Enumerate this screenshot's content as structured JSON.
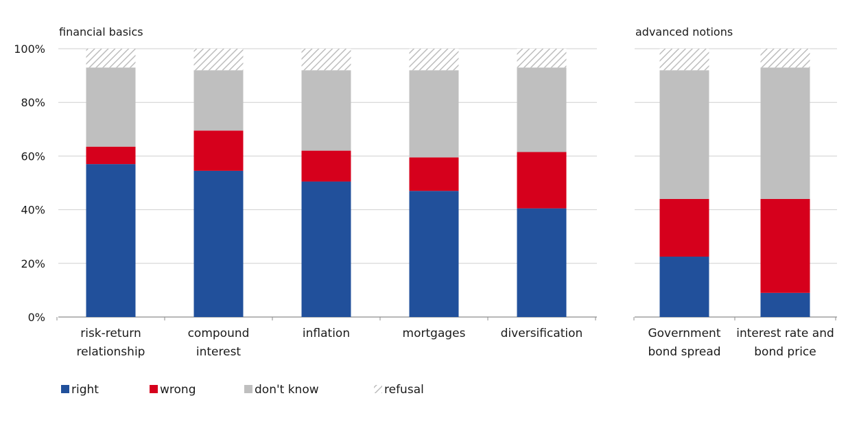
{
  "chart_data": {
    "type": "bar",
    "stacked": true,
    "y_tick_labels": [
      "0%",
      "20%",
      "40%",
      "60%",
      "80%",
      "100%"
    ],
    "ylim": [
      0,
      100
    ],
    "grid": true,
    "legend_position": "bottom-left",
    "series": [
      {
        "name": "right",
        "color": "#21509B"
      },
      {
        "name": "wrong",
        "color": "#D6001C"
      },
      {
        "name": "don't know",
        "color": "#BFBFBF"
      },
      {
        "name": "refusal",
        "color": "#E6E6E6",
        "pattern": "hatched"
      }
    ],
    "panels": [
      {
        "title": "financial basics",
        "categories": [
          [
            "risk-return",
            "relationship"
          ],
          [
            "compound",
            "interest"
          ],
          [
            "inflation"
          ],
          [
            "mortgages"
          ],
          [
            "diversification"
          ]
        ],
        "values": {
          "right": [
            57,
            54.5,
            50.5,
            47,
            40.5
          ],
          "wrong": [
            6.5,
            15,
            11.5,
            12.5,
            21
          ],
          "don't know": [
            29.5,
            22.5,
            30,
            32.5,
            31.5
          ],
          "refusal": [
            7,
            8,
            8,
            8,
            7
          ]
        }
      },
      {
        "title": "advanced notions",
        "categories": [
          [
            "Government",
            "bond spread"
          ],
          [
            "interest rate and",
            "bond price"
          ]
        ],
        "values": {
          "right": [
            22.5,
            9
          ],
          "wrong": [
            21.5,
            35
          ],
          "don't know": [
            48,
            49
          ],
          "refusal": [
            8,
            7
          ]
        }
      }
    ]
  }
}
